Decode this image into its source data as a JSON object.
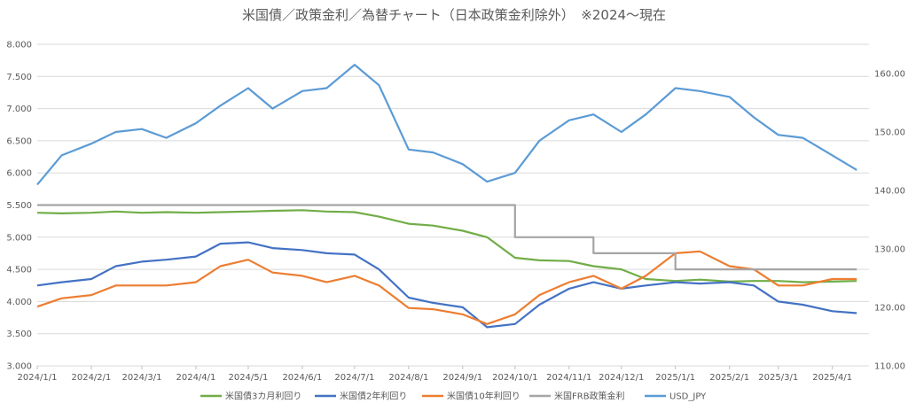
{
  "chart_data": {
    "type": "line",
    "title": "米国債／政策金利／為替チャート（日本政策金利除外）　※2024～現在",
    "x_dates": [
      "2024/01/01",
      "2024/01/15",
      "2024/02/01",
      "2024/02/15",
      "2024/03/01",
      "2024/03/15",
      "2024/04/01",
      "2024/04/15",
      "2024/05/01",
      "2024/05/15",
      "2024/06/01",
      "2024/06/15",
      "2024/07/01",
      "2024/07/15",
      "2024/08/01",
      "2024/08/15",
      "2024/09/01",
      "2024/09/15",
      "2024/10/01",
      "2024/10/15",
      "2024/11/01",
      "2024/11/15",
      "2024/12/01",
      "2024/12/15",
      "2025/01/01",
      "2025/01/15",
      "2025/02/01",
      "2025/02/15",
      "2025/03/01",
      "2025/03/15",
      "2025/04/01",
      "2025/04/15"
    ],
    "x_ticks": [
      "2024/1/1",
      "2024/2/1",
      "2024/3/1",
      "2024/4/1",
      "2024/5/1",
      "2024/6/1",
      "2024/7/1",
      "2024/8/1",
      "2024/9/1",
      "2024/10/1",
      "2024/11/1",
      "2024/12/1",
      "2025/1/1",
      "2025/2/1",
      "2025/3/1",
      "2025/4/1"
    ],
    "y_left": {
      "min": 3.0,
      "max": 8.0,
      "ticks": [
        "3.000",
        "3.500",
        "4.000",
        "4.500",
        "5.000",
        "5.500",
        "6.000",
        "6.500",
        "7.000",
        "7.500",
        "8.000"
      ]
    },
    "y_right": {
      "min": 110,
      "max": 165,
      "ticks": [
        "110.00",
        "120.00",
        "130.00",
        "140.00",
        "150.00",
        "160.00"
      ]
    },
    "legend_position": "bottom",
    "grid": true,
    "series": [
      {
        "name": "米国債3カ月利回り",
        "color": "#70ad47",
        "axis": "left",
        "values": [
          5.38,
          5.37,
          5.38,
          5.4,
          5.38,
          5.39,
          5.38,
          5.39,
          5.4,
          5.41,
          5.42,
          5.4,
          5.39,
          5.32,
          5.21,
          5.18,
          5.1,
          5.0,
          4.68,
          4.64,
          4.63,
          4.55,
          4.5,
          4.35,
          4.32,
          4.34,
          4.31,
          4.32,
          4.32,
          4.3,
          4.31,
          4.32
        ]
      },
      {
        "name": "米国債2年利回り",
        "color": "#4472c4",
        "axis": "left",
        "values": [
          4.25,
          4.3,
          4.35,
          4.55,
          4.62,
          4.65,
          4.7,
          4.9,
          4.92,
          4.83,
          4.8,
          4.75,
          4.73,
          4.5,
          4.06,
          3.98,
          3.91,
          3.6,
          3.65,
          3.95,
          4.2,
          4.3,
          4.2,
          4.25,
          4.3,
          4.28,
          4.3,
          4.25,
          4.0,
          3.95,
          3.85,
          3.82
        ]
      },
      {
        "name": "米国債10年利回り",
        "color": "#ed7d31",
        "axis": "left",
        "values": [
          3.92,
          4.05,
          4.1,
          4.25,
          4.25,
          4.25,
          4.3,
          4.55,
          4.65,
          4.45,
          4.4,
          4.3,
          4.4,
          4.25,
          3.9,
          3.88,
          3.8,
          3.65,
          3.8,
          4.1,
          4.3,
          4.4,
          4.2,
          4.4,
          4.75,
          4.78,
          4.55,
          4.5,
          4.25,
          4.25,
          4.35,
          4.35
        ]
      },
      {
        "name": "米国FRB政策金利",
        "color": "#a5a5a5",
        "axis": "left",
        "step": true,
        "values": [
          5.5,
          5.5,
          5.5,
          5.5,
          5.5,
          5.5,
          5.5,
          5.5,
          5.5,
          5.5,
          5.5,
          5.5,
          5.5,
          5.5,
          5.5,
          5.5,
          5.5,
          5.5,
          5.0,
          5.0,
          5.0,
          4.75,
          4.75,
          4.75,
          4.5,
          4.5,
          4.5,
          4.5,
          4.5,
          4.5,
          4.5,
          4.5
        ]
      },
      {
        "name": "USD_JPY",
        "color": "#5b9bd5",
        "axis": "right",
        "values": [
          141.0,
          146.0,
          148.0,
          150.0,
          150.5,
          149.0,
          151.5,
          154.5,
          157.5,
          154.0,
          157.0,
          157.5,
          161.5,
          158.0,
          147.0,
          146.5,
          144.5,
          141.5,
          143.0,
          148.5,
          152.0,
          153.0,
          150.0,
          153.0,
          157.5,
          157.0,
          156.0,
          152.5,
          149.5,
          149.0,
          146.0,
          143.5
        ]
      }
    ]
  }
}
